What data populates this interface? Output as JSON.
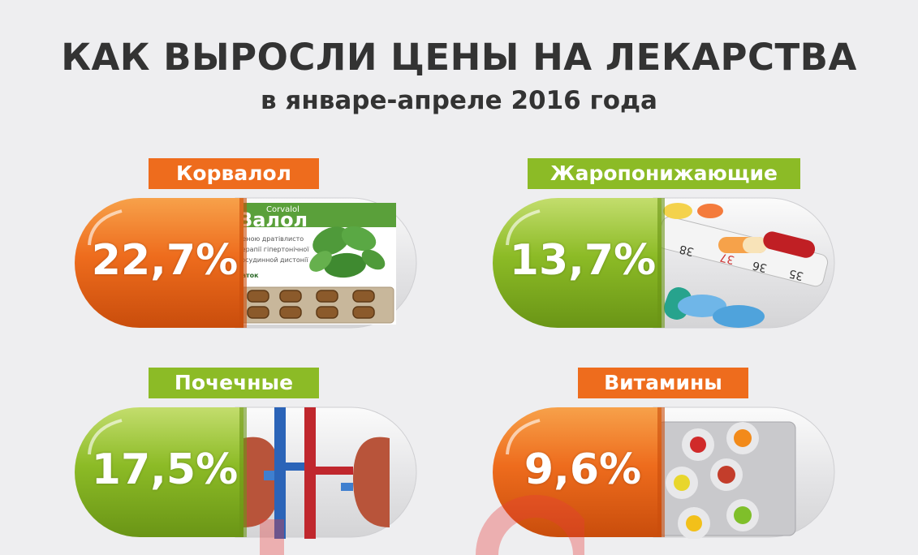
{
  "header": {
    "title": "КАК ВЫРОСЛИ ЦЕНЫ НА ЛЕКАРСТВА",
    "subtitle": "в январе-апреле 2016 года"
  },
  "colors": {
    "orange": "#ee6c1d",
    "green": "#8cbb26",
    "text": "#333333",
    "background": "#eeeef0"
  },
  "chart_data": {
    "type": "bar",
    "unit": "%",
    "categories": [
      "Корвалол",
      "Жаропонижающие",
      "Почечные",
      "Витамины"
    ],
    "values": [
      22.7,
      13.7,
      17.5,
      9.6
    ],
    "value_labels": [
      "22,7%",
      "13,7%",
      "17,5%",
      "9,6%"
    ],
    "colors": [
      "orange",
      "green",
      "green",
      "orange"
    ],
    "title": "КАК ВЫРОСЛИ ЦЕНЫ НА ЛЕКАРСТВА",
    "subtitle": "в январе-апреле 2016 года"
  },
  "images": {
    "corvalol": {
      "box_text_1": "Corvalol",
      "box_text_2": "Валол",
      "box_text_3": "ценою дратівлисто",
      "box_text_4": "терапії гіпертонічної",
      "box_text_5": "госудинной дистонії",
      "box_text_6": "таток"
    },
    "antipyretic": {
      "thermometer_1": "38",
      "thermometer_2": "37",
      "thermometer_3": "36",
      "thermometer_4": "35"
    }
  }
}
